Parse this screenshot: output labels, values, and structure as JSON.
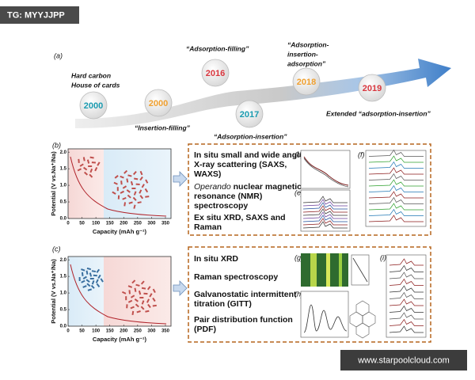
{
  "watermark": "TG: MYYJJPP",
  "site": "www.starpoolcloud.com",
  "panel_a": {
    "label": "(a)",
    "nodes": [
      {
        "year": "2000",
        "color": "#1a9bb0",
        "caption": [
          "Hard carbon",
          "House of cards"
        ]
      },
      {
        "year": "2000",
        "color": "#f0a030",
        "caption": [
          "“Insertion-filling”"
        ]
      },
      {
        "year": "2016",
        "color": "#d9363e",
        "caption": [
          "“Adsorption-filling”"
        ]
      },
      {
        "year": "2017",
        "color": "#1a9bb0",
        "caption": [
          "“Adsorption-insertion”"
        ]
      },
      {
        "year": "2018",
        "color": "#f0a030",
        "caption": [
          "“Adsorption-",
          "insertion-",
          "adsorption”"
        ]
      },
      {
        "year": "2019",
        "color": "#d9363e",
        "caption": [
          "Extended “adsorption-insertion”"
        ]
      }
    ]
  },
  "panel_b": {
    "label": "(b)",
    "ylabel": "Potential (V vs.Na⁺/Na)",
    "xlabel": "Capacity (mAh g⁻¹)",
    "xlim": [
      0,
      370
    ],
    "ylim": [
      0,
      2.1
    ],
    "xticks": [
      0,
      50,
      100,
      150,
      200,
      250,
      300,
      350
    ],
    "yticks": [
      {
        "value": 0,
        "label": "0.0"
      },
      {
        "value": 0.5,
        "label": "0.5"
      },
      {
        "value": 1,
        "label": "1.0"
      },
      {
        "value": 1.5,
        "label": "1.5"
      },
      {
        "value": 2,
        "label": "2.0"
      }
    ],
    "methods": [
      {
        "lines": [
          "In situ small and wide angle",
          "X-ray scattering (SAXS,",
          "WAXS)"
        ]
      },
      {
        "italic": "Operando",
        "lines": [
          " nuclear magnetic",
          "resonance (NMR)",
          "spectroscopy"
        ]
      },
      {
        "lines": [
          "Ex situ XRD, SAXS and",
          "Raman"
        ]
      }
    ],
    "subpanels": [
      "(d)",
      "(e)",
      "(f)"
    ]
  },
  "panel_c": {
    "label": "(c)",
    "ylabel": "Potential (V vs.Na⁺/Na)",
    "xlabel": "Capacity (mAh g⁻¹)",
    "xlim": [
      0,
      370
    ],
    "ylim": [
      0,
      2.1
    ],
    "xticks": [
      0,
      50,
      100,
      150,
      200,
      250,
      300,
      350
    ],
    "yticks": [
      {
        "value": 0,
        "label": "0.0"
      },
      {
        "value": 0.5,
        "label": "0.5"
      },
      {
        "value": 1,
        "label": "1.0"
      },
      {
        "value": 1.5,
        "label": "1.5"
      },
      {
        "value": 2,
        "label": "2.0"
      }
    ],
    "methods": [
      {
        "lines": [
          "In situ XRD"
        ]
      },
      {
        "lines": [
          "Raman spectroscopy"
        ]
      },
      {
        "lines": [
          "Galvanostatic intermittent",
          "titration (GITT)"
        ]
      },
      {
        "lines": [
          "Pair distribution function",
          "(PDF)"
        ]
      }
    ],
    "subpanels": [
      "(g)",
      "(h)",
      "(i)"
    ]
  }
}
